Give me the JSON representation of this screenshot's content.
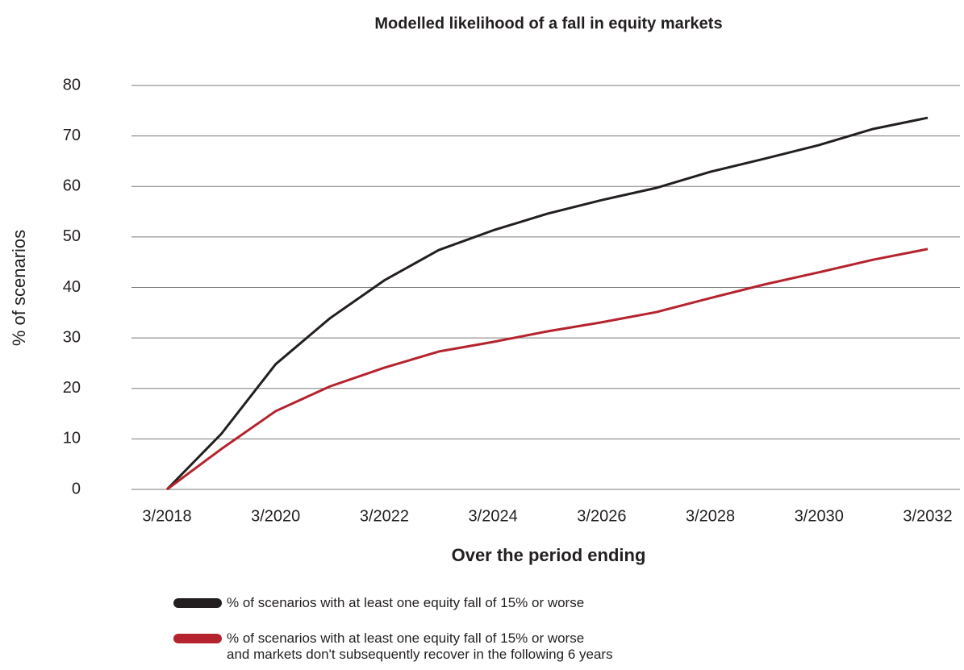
{
  "chart_data": {
    "type": "line",
    "title": "Modelled likelihood of a fall in equity markets",
    "x_label": "Over the period ending",
    "y_label": "% of scenarios",
    "categories": [
      "3/2018",
      null,
      "3/2020",
      null,
      "3/2022",
      null,
      "3/2024",
      null,
      "3/2026",
      null,
      "3/2028",
      null,
      "3/2030",
      null,
      "3/2032"
    ],
    "series": [
      {
        "name": "% of scenarios with at least one equity fall of 15% or worse",
        "color": "#231f20",
        "values": [
          0,
          11,
          24.8,
          33.9,
          41.4,
          47.4,
          51.3,
          54.6,
          57.3,
          59.7,
          62.9,
          65.5,
          68.2,
          71.4,
          73.6
        ]
      },
      {
        "name": "% of scenarios with at least one equity fall of 15% or worse\nand markets don't subsequently recover in the following 6 years",
        "color": "#b5232e",
        "values": [
          0,
          8,
          15.5,
          20.4,
          24.1,
          27.3,
          29.2,
          31.3,
          33.1,
          35.1,
          37.9,
          40.6,
          43.0,
          45.5,
          47.6
        ]
      }
    ],
    "ylim": [
      0,
      80
    ],
    "yticks": [
      0,
      10,
      20,
      30,
      40,
      50,
      60,
      70,
      80
    ],
    "grid": true
  }
}
